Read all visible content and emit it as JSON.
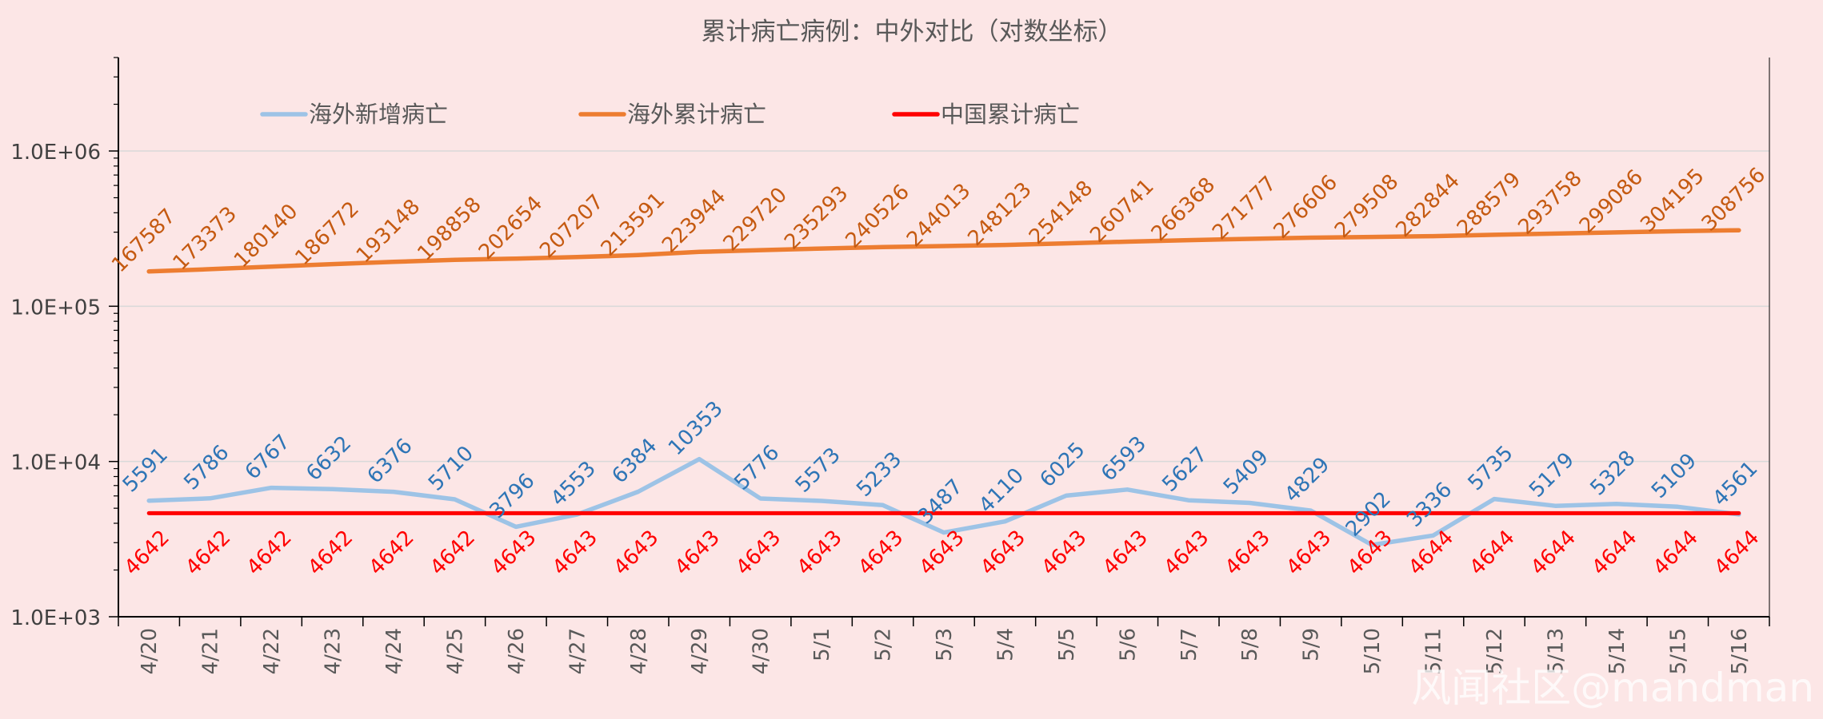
{
  "chart_data": {
    "type": "line",
    "title": "累计病亡病例：中外对比（对数坐标）",
    "xlabel": "",
    "ylabel": "",
    "y_scale": "log",
    "ylim": [
      1000,
      4000000
    ],
    "grid": true,
    "legend_position": "top-left",
    "yticks": [
      1000,
      10000,
      100000,
      1000000
    ],
    "ytick_labels": [
      "1.0E+03",
      "1.0E+04",
      "1.0E+05",
      "1.0E+06"
    ],
    "categories": [
      "4/20",
      "4/21",
      "4/22",
      "4/23",
      "4/24",
      "4/25",
      "4/26",
      "4/27",
      "4/28",
      "4/29",
      "4/30",
      "5/1",
      "5/2",
      "5/3",
      "5/4",
      "5/5",
      "5/6",
      "5/7",
      "5/8",
      "5/9",
      "5/10",
      "5/11",
      "5/12",
      "5/13",
      "5/14",
      "5/15",
      "5/16"
    ],
    "series": [
      {
        "name": "海外新增病亡",
        "color": "#9dc3e6",
        "label_color": "#2e75b6",
        "values": [
          5591,
          5786,
          6767,
          6632,
          6376,
          5710,
          3796,
          4553,
          6384,
          10353,
          5776,
          5573,
          5233,
          3487,
          4110,
          6025,
          6593,
          5627,
          5409,
          4829,
          2902,
          3336,
          5735,
          5179,
          5328,
          5109,
          4561
        ]
      },
      {
        "name": "海外累计病亡",
        "color": "#ed7d31",
        "label_color": "#c55a11",
        "values": [
          167587,
          173373,
          180140,
          186772,
          193148,
          198858,
          202654,
          207207,
          213591,
          223944,
          229720,
          235293,
          240526,
          244013,
          248123,
          254148,
          260741,
          266368,
          271777,
          276606,
          279508,
          282844,
          288579,
          293758,
          299086,
          304195,
          308756
        ]
      },
      {
        "name": "中国累计病亡",
        "color": "#ff0000",
        "label_color": "#ff0000",
        "values": [
          4642,
          4642,
          4642,
          4642,
          4642,
          4642,
          4643,
          4643,
          4643,
          4643,
          4643,
          4643,
          4643,
          4643,
          4643,
          4643,
          4643,
          4643,
          4643,
          4643,
          4643,
          4644,
          4644,
          4644,
          4644,
          4644,
          4644
        ]
      }
    ]
  },
  "watermark": "风闻社区@mandman"
}
